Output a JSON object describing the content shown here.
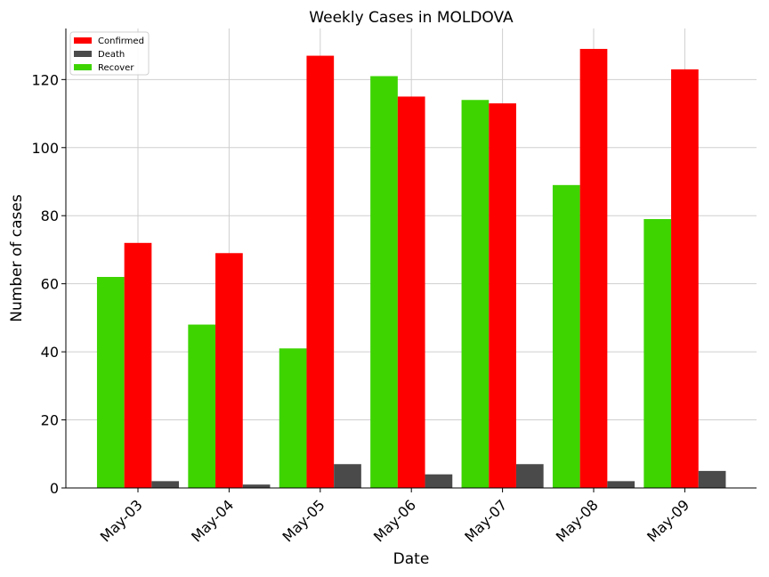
{
  "chart_data": {
    "type": "bar",
    "title": "Weekly Cases in MOLDOVA",
    "xlabel": "Date",
    "ylabel": "Number of cases",
    "categories": [
      "May-03",
      "May-04",
      "May-05",
      "May-06",
      "May-07",
      "May-08",
      "May-09"
    ],
    "series": [
      {
        "name": "Recover",
        "color": "#3dd400",
        "values": [
          62,
          48,
          41,
          121,
          114,
          89,
          79
        ]
      },
      {
        "name": "Confirmed",
        "color": "#ff0000",
        "values": [
          72,
          69,
          127,
          115,
          113,
          129,
          123
        ]
      },
      {
        "name": "Death",
        "color": "#4a4a4a",
        "values": [
          2,
          1,
          7,
          4,
          7,
          2,
          5
        ]
      }
    ],
    "legend_order": [
      "Confirmed",
      "Death",
      "Recover"
    ],
    "ylim": [
      0,
      135
    ],
    "yticks": [
      0,
      20,
      40,
      60,
      80,
      100,
      120
    ],
    "grid": true,
    "legend_position": "top-left"
  }
}
